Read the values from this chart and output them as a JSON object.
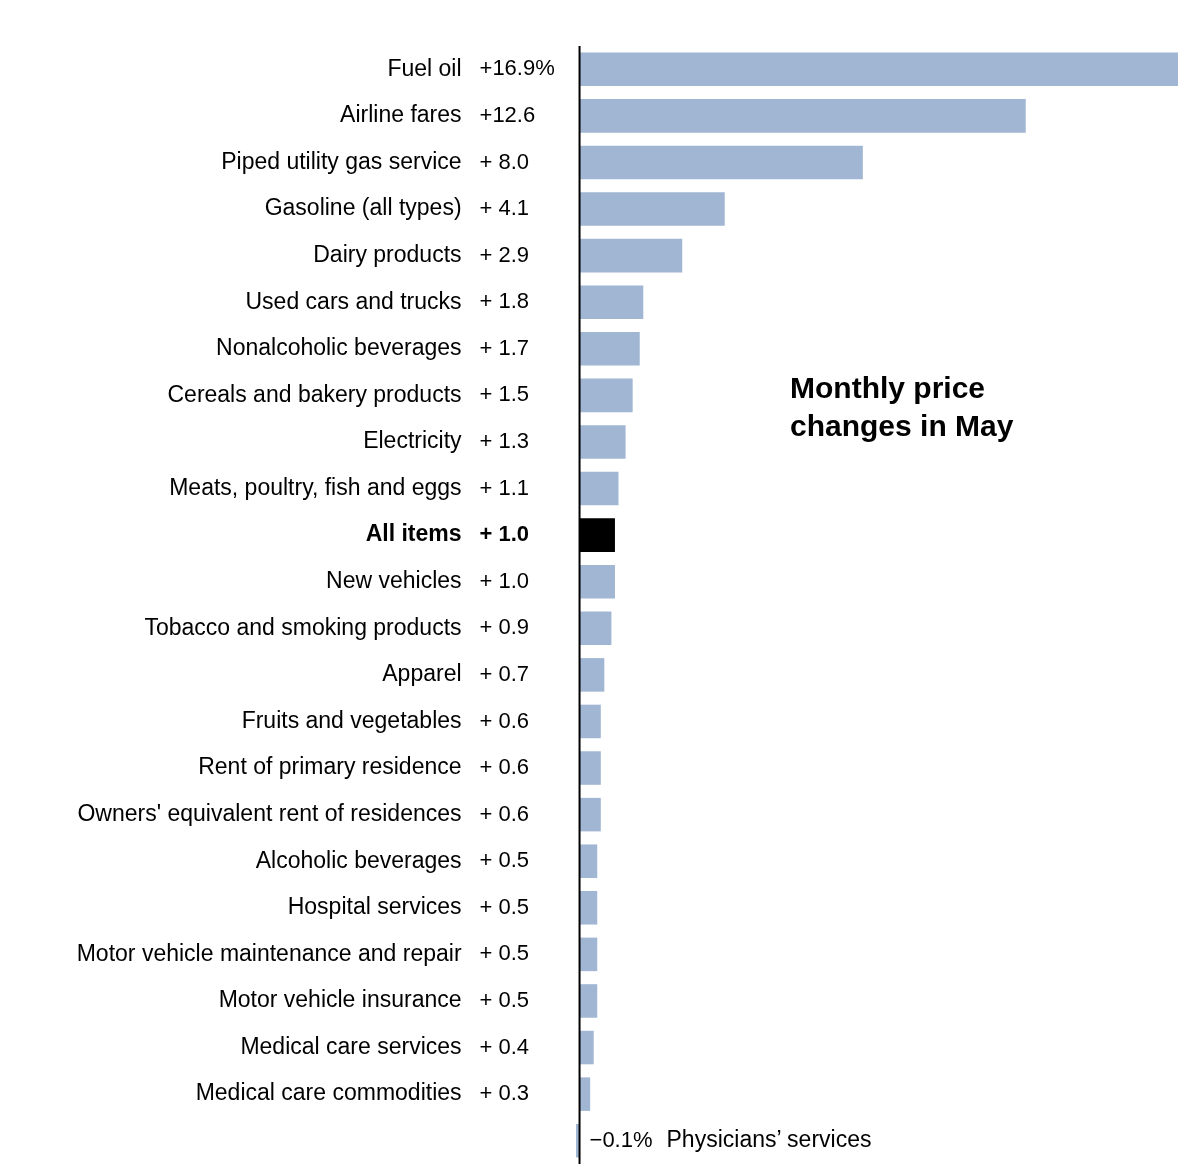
{
  "chart_data": {
    "type": "bar",
    "orientation": "horizontal",
    "title": "Monthly price changes in May",
    "categories": [
      "Fuel oil",
      "Airline fares",
      "Piped utility gas service",
      "Gasoline (all types)",
      "Dairy products",
      "Used cars and trucks",
      "Nonalcoholic beverages",
      "Cereals and bakery products",
      "Electricity",
      "Meats, poultry, fish and eggs",
      "All items",
      "New vehicles",
      "Tobacco and smoking products",
      "Apparel",
      "Fruits and vegetables",
      "Rent of primary residence",
      "Owners' equivalent rent of residences",
      "Alcoholic beverages",
      "Hospital services",
      "Motor vehicle maintenance and repair",
      "Motor vehicle insurance",
      "Medical care services",
      "Medical care commodities",
      "Physicians’ services"
    ],
    "values": [
      16.9,
      12.6,
      8.0,
      4.1,
      2.9,
      1.8,
      1.7,
      1.5,
      1.3,
      1.1,
      1.0,
      1.0,
      0.9,
      0.7,
      0.6,
      0.6,
      0.6,
      0.5,
      0.5,
      0.5,
      0.5,
      0.4,
      0.3,
      -0.1
    ],
    "value_labels": [
      "+16.9%",
      "+12.6",
      "+ 8.0",
      "+ 4.1",
      "+ 2.9",
      "+ 1.8",
      "+ 1.7",
      "+ 1.5",
      "+ 1.3",
      "+ 1.1",
      "+ 1.0",
      "+ 1.0",
      "+ 0.9",
      "+ 0.7",
      "+ 0.6",
      "+ 0.6",
      "+ 0.6",
      "+ 0.5",
      "+ 0.5",
      "+ 0.5",
      "+ 0.5",
      "+ 0.4",
      "+ 0.3",
      "−0.1%"
    ],
    "colors": [
      "#a0b6d3",
      "#a0b6d3",
      "#a0b6d3",
      "#a0b6d3",
      "#a0b6d3",
      "#a0b6d3",
      "#a0b6d3",
      "#a0b6d3",
      "#a0b6d3",
      "#a0b6d3",
      "#000000",
      "#a0b6d3",
      "#a0b6d3",
      "#a0b6d3",
      "#a0b6d3",
      "#a0b6d3",
      "#a0b6d3",
      "#a0b6d3",
      "#a0b6d3",
      "#a0b6d3",
      "#a0b6d3",
      "#a0b6d3",
      "#a0b6d3",
      "#a0b6d3"
    ],
    "legend": false
  }
}
